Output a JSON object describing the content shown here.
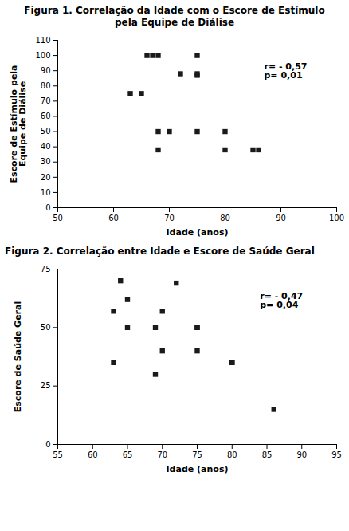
{
  "chart_data": [
    {
      "type": "scatter",
      "title": "Figura 1. Correlação da Idade com o Escore de Estímulo\npela Equipe de Diálise",
      "x_label": "Idade (anos)",
      "y_label": "Escore de Estímulo pela\nEquipe de Diálise",
      "x": [
        63,
        65,
        66,
        67,
        68,
        68,
        68,
        70,
        72,
        75,
        75,
        75,
        75,
        80,
        80,
        85,
        86
      ],
      "values": [
        75,
        75,
        100,
        100,
        100,
        38,
        50,
        50,
        88,
        100,
        88,
        87,
        50,
        38,
        50,
        38,
        38
      ],
      "color": "#1a1a1a",
      "marker": "square",
      "xlim": [
        50,
        100
      ],
      "ylim": [
        0,
        110
      ],
      "xticks": [
        50,
        60,
        70,
        80,
        90,
        100
      ],
      "yticks": [
        0,
        10,
        20,
        30,
        40,
        50,
        60,
        70,
        80,
        90,
        100,
        110
      ],
      "grid": false,
      "annotations": [
        {
          "text": "r= - 0,57\np= 0,01",
          "x": 87,
          "y": 95
        }
      ]
    },
    {
      "type": "scatter",
      "title": "Figura 2. Correlação entre Idade e Escore de Saúde Geral",
      "x_label": "Idade (anos)",
      "y_label": "Escore de Saúde Geral",
      "x": [
        63,
        63,
        64,
        65,
        65,
        69,
        69,
        70,
        70,
        72,
        75,
        75,
        75,
        80,
        80,
        86
      ],
      "values": [
        35,
        57,
        70,
        62,
        50,
        50,
        30,
        40,
        57,
        69,
        40,
        50,
        50,
        35,
        35,
        15
      ],
      "color": "#1a1a1a",
      "marker": "square",
      "xlim": [
        55,
        95
      ],
      "ylim": [
        0,
        75
      ],
      "xticks": [
        55,
        60,
        65,
        70,
        75,
        80,
        85,
        90,
        95
      ],
      "yticks": [
        0,
        25,
        50,
        75
      ],
      "grid": false,
      "annotations": [
        {
          "text": "r= - 0,47\np= 0,04",
          "x": 84,
          "y": 65
        }
      ]
    }
  ]
}
